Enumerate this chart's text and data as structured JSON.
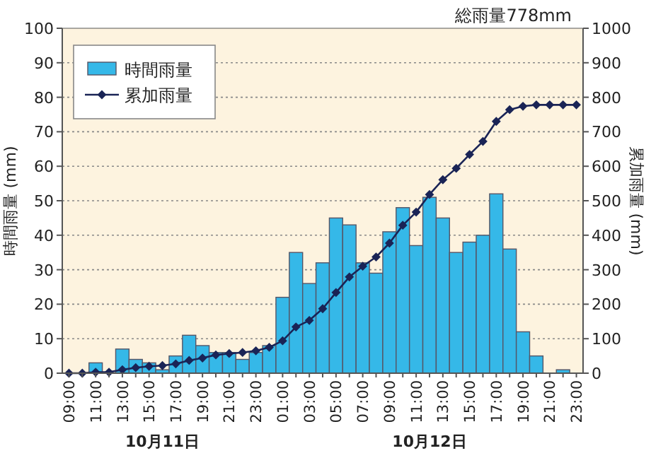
{
  "chart_data": {
    "type": "bar",
    "title": "総雨量778mm",
    "ylabel": "時間雨量 (mm)",
    "y2label": "累加雨量 (mm)",
    "annotations": [
      "10月11日",
      "10月12日"
    ],
    "categories": [
      "09:00",
      null,
      "11:00",
      null,
      "13:00",
      null,
      "15:00",
      null,
      "17:00",
      null,
      "19:00",
      null,
      "21:00",
      null,
      "23:00",
      null,
      "01:00",
      null,
      "03:00",
      null,
      "05:00",
      null,
      "07:00",
      null,
      "09:00",
      null,
      "11:00",
      null,
      "13:00",
      null,
      "15:00",
      null,
      "17:00",
      null,
      "19:00",
      null,
      "21:00",
      null,
      "23:00"
    ],
    "series": [
      {
        "name": "時間雨量",
        "color": "#35b8e8",
        "values": [
          0,
          0,
          3,
          0,
          7,
          4,
          3,
          1,
          5,
          11,
          8,
          6,
          6,
          4,
          6,
          8,
          22,
          35,
          26,
          32,
          45,
          43,
          32,
          29,
          41,
          48,
          37,
          51,
          45,
          35,
          38,
          40,
          52,
          36,
          12,
          5,
          0,
          1,
          0
        ]
      },
      {
        "name": "累加雨量",
        "type": "line",
        "axis": "y2",
        "color": "#1a2456",
        "marker": "diamond",
        "values": [
          0,
          0,
          3,
          3,
          10,
          16,
          20,
          22,
          27,
          37,
          44,
          53,
          57,
          60,
          65,
          75,
          94,
          134,
          153,
          187,
          234,
          279,
          310,
          337,
          377,
          429,
          467,
          518,
          561,
          594,
          634,
          672,
          730,
          764,
          774,
          778,
          778,
          778,
          778
        ]
      }
    ],
    "ylim": [
      0,
      100
    ],
    "yticks": [
      0,
      10,
      20,
      30,
      40,
      50,
      60,
      70,
      80,
      90,
      100
    ],
    "y2lim": [
      0,
      1000
    ],
    "y2ticks": [
      0,
      100,
      200,
      300,
      400,
      500,
      600,
      700,
      800,
      900,
      1000
    ],
    "grid": "y",
    "legend": "top left"
  }
}
